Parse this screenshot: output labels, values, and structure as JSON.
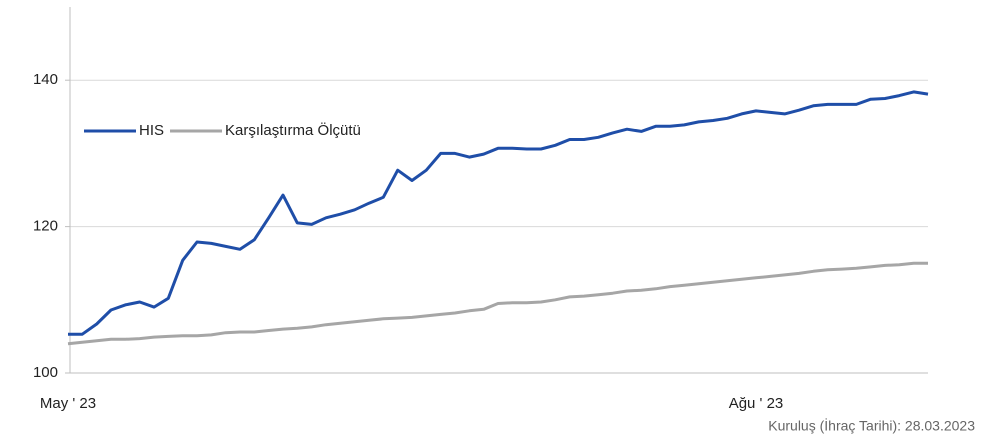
{
  "chart_data": {
    "type": "line",
    "note": "Kuruluş (İhraç Tarihi): 28.03.2023",
    "categories": [
      "May ' 23",
      null,
      null,
      null,
      null,
      null,
      null,
      null,
      null,
      null,
      null,
      null,
      null,
      null,
      null,
      null,
      null,
      null,
      null,
      null,
      null,
      null,
      null,
      null,
      null,
      null,
      null,
      null,
      null,
      null,
      null,
      null,
      null,
      null,
      null,
      null,
      null,
      null,
      null,
      null,
      null,
      null,
      null,
      null,
      null,
      null,
      null,
      null,
      "Ağu ' 23",
      null,
      null,
      null,
      null,
      null,
      null,
      null,
      null,
      null,
      null,
      null,
      null
    ],
    "series": [
      {
        "name": "HIS",
        "color": "#1f4ea8",
        "values": [
          105.3,
          105.3,
          106.7,
          108.6,
          109.3,
          109.7,
          109.0,
          110.2,
          115.4,
          117.9,
          117.7,
          117.3,
          116.9,
          118.2,
          121.2,
          124.3,
          120.5,
          120.3,
          121.2,
          121.7,
          122.3,
          123.2,
          124.0,
          127.7,
          126.3,
          127.7,
          130.0,
          130.0,
          129.5,
          129.9,
          130.7,
          130.7,
          130.6,
          130.6,
          131.1,
          131.9,
          131.9,
          132.2,
          132.8,
          133.3,
          133.0,
          133.7,
          133.7,
          133.9,
          134.3,
          134.5,
          134.8,
          135.4,
          135.8,
          135.6,
          135.4,
          135.9,
          136.5,
          136.7,
          136.7,
          136.7,
          137.4,
          137.5,
          137.9,
          138.4,
          138.1
        ]
      },
      {
        "name": "Karşılaştırma Ölçütü",
        "color": "#a6a6a6",
        "values": [
          104.0,
          104.2,
          104.4,
          104.6,
          104.6,
          104.7,
          104.9,
          105.0,
          105.1,
          105.1,
          105.2,
          105.5,
          105.6,
          105.6,
          105.8,
          106.0,
          106.1,
          106.3,
          106.6,
          106.8,
          107.0,
          107.2,
          107.4,
          107.5,
          107.6,
          107.8,
          108.0,
          108.2,
          108.5,
          108.7,
          109.5,
          109.6,
          109.6,
          109.7,
          110.0,
          110.4,
          110.5,
          110.7,
          110.9,
          111.2,
          111.3,
          111.5,
          111.8,
          112.0,
          112.2,
          112.4,
          112.6,
          112.8,
          113.0,
          113.2,
          113.4,
          113.6,
          113.9,
          114.1,
          114.2,
          114.3,
          114.5,
          114.7,
          114.8,
          115.0,
          115.0
        ]
      }
    ],
    "ylim": [
      100,
      150
    ],
    "yticks": [
      100,
      120,
      140
    ],
    "grid": true
  }
}
